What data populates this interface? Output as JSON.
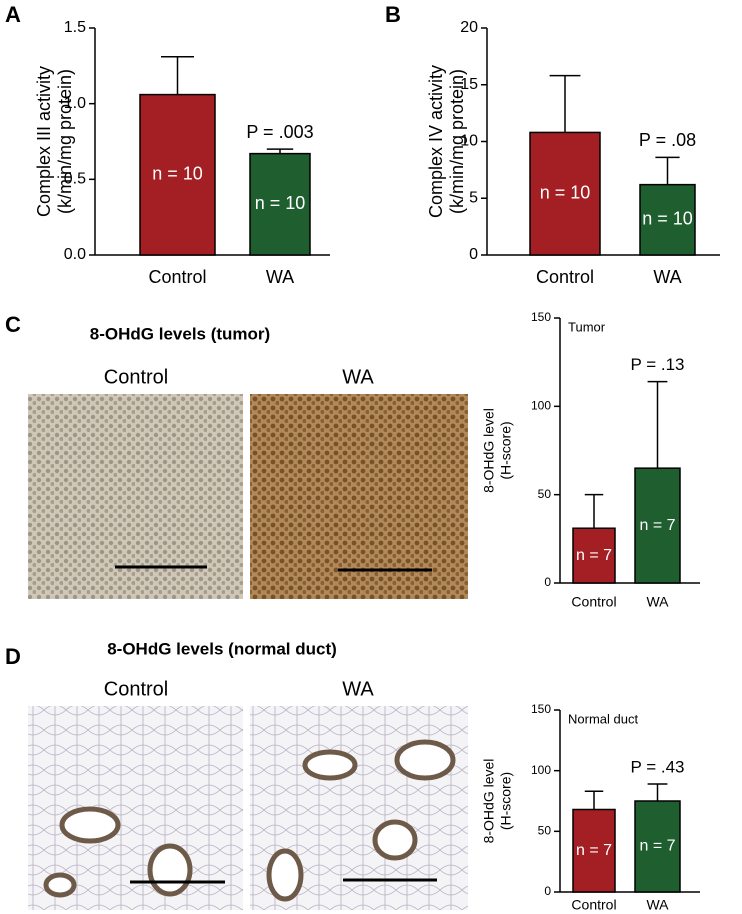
{
  "chart_data": [
    {
      "type": "bar",
      "panel": "A",
      "categories": [
        "Control",
        "WA"
      ],
      "values": [
        1.06,
        0.67
      ],
      "errors": [
        0.25,
        0.03
      ],
      "colors": [
        "#a31f24",
        "#1e5e2f"
      ],
      "bar_labels": [
        "n = 10",
        "n = 10"
      ],
      "annotation": "P = .003",
      "y_label": [
        "Complex III activity",
        "(k/min/mg protein)"
      ],
      "ylim": [
        0,
        1.5
      ],
      "yticks": [
        {
          "value": 0,
          "label": "0.0"
        },
        0.5,
        {
          "value": 1,
          "label": "1.0"
        },
        1.5
      ]
    },
    {
      "type": "bar",
      "panel": "B",
      "categories": [
        "Control",
        "WA"
      ],
      "values": [
        10.8,
        6.2
      ],
      "errors": [
        5.0,
        2.4
      ],
      "colors": [
        "#a31f24",
        "#1e5e2f"
      ],
      "bar_labels": [
        "n = 10",
        "n = 10"
      ],
      "annotation": "P = .08",
      "y_label": [
        "Complex IV activity",
        "(k/min/mg protein)"
      ],
      "ylim": [
        0,
        20
      ],
      "yticks": [
        0,
        5,
        10,
        15,
        20
      ]
    },
    {
      "type": "bar",
      "panel": "C",
      "categories": [
        "Control",
        "WA"
      ],
      "values": [
        31,
        65
      ],
      "errors": [
        19,
        49
      ],
      "colors": [
        "#a31f24",
        "#1e5e2f"
      ],
      "bar_labels": [
        "n = 7",
        "n = 7"
      ],
      "annotation": "P = .13",
      "inset_label": "Tumor",
      "y_label": [
        "8-OHdG level",
        "(H-score)"
      ],
      "ylim": [
        0,
        150
      ],
      "yticks": [
        0,
        50,
        100,
        150
      ]
    },
    {
      "type": "bar",
      "panel": "D",
      "categories": [
        "Control",
        "WA"
      ],
      "values": [
        68,
        75
      ],
      "errors": [
        15,
        14
      ],
      "colors": [
        "#a31f24",
        "#1e5e2f"
      ],
      "bar_labels": [
        "n = 7",
        "n = 7"
      ],
      "annotation": "P = .43",
      "inset_label": "Normal duct",
      "y_label": [
        "8-OHdG level",
        "(H-score)"
      ],
      "ylim": [
        0,
        150
      ],
      "yticks": [
        0,
        50,
        100,
        150
      ]
    }
  ],
  "image_panels": [
    {
      "heading": "8-OHdG levels (tumor)",
      "labels": [
        "Control",
        "WA"
      ]
    },
    {
      "heading": "8-OHdG levels (normal duct)",
      "labels": [
        "Control",
        "WA"
      ]
    }
  ]
}
